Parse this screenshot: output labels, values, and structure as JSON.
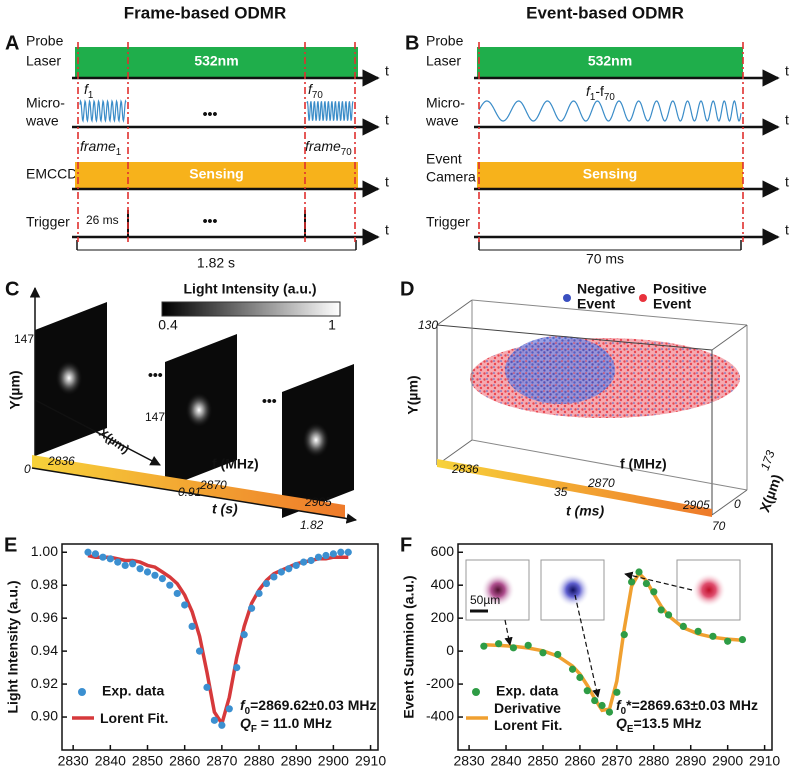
{
  "panel_a": {
    "letter": "A",
    "title": "Frame-based ODMR",
    "probe": [
      "Probe",
      "Laser"
    ],
    "micro": [
      "Micro-",
      "wave"
    ],
    "cam": [
      "EMCCD"
    ],
    "trig": [
      "Trigger"
    ],
    "laser": "532nm",
    "sensing": "Sensing",
    "axis": "t",
    "f_first": [
      "f",
      "1"
    ],
    "f_last": [
      "f",
      "70"
    ],
    "dots": "•••",
    "frame_first": [
      "frame",
      "1"
    ],
    "frame_last": [
      "frame",
      "70"
    ],
    "period": "26 ms",
    "total": "1.82 s"
  },
  "panel_b": {
    "letter": "B",
    "title": "Event-based ODMR",
    "probe": [
      "Probe",
      "Laser"
    ],
    "micro": [
      "Micro-",
      "wave"
    ],
    "cam": [
      "Event",
      "Camera"
    ],
    "trig": [
      "Trigger"
    ],
    "laser": "532nm",
    "sensing": "Sensing",
    "axis": "t",
    "f_range": [
      "f",
      "1",
      "-f",
      "70"
    ],
    "total": "70 ms"
  },
  "panel_c": {
    "letter": "C",
    "colorbar_title": "Light Intensity (a.u.)",
    "colorbar_min": 0.4,
    "colorbar_max": 1,
    "y_label": "Y(µm)",
    "y_max": 147,
    "x_label": "X(µm)",
    "x_max": 147,
    "dots": "•••",
    "origin": 0,
    "freqs": [
      2836,
      2870,
      2905
    ],
    "f_label": "f (MHz)",
    "times": [
      0.91,
      1.82
    ],
    "t_label": "t (s)"
  },
  "panel_d": {
    "letter": "D",
    "negative": [
      "Negative",
      "Event"
    ],
    "positive": [
      "Positive",
      "Event"
    ],
    "negative_color": "#3a4fc0",
    "positive_color": "#e8323c",
    "y_label": "Y(µm)",
    "y_max": 130,
    "origin": 0,
    "freqs": [
      2836,
      2870,
      2905
    ],
    "f_label": "f (MHz)",
    "t_mid": 35,
    "t_max": 70,
    "t_label": "t (ms)",
    "x_max": 173,
    "x_label": "X(µm)"
  },
  "panel_e": {
    "letter": "E",
    "type": "scatter",
    "ylabel": "Light Intensity (a.u.)",
    "x": [
      2834,
      2836,
      2838,
      2840,
      2842,
      2844,
      2846,
      2848,
      2850,
      2852,
      2854,
      2856,
      2858,
      2860,
      2862,
      2864,
      2866,
      2868,
      2870,
      2872,
      2874,
      2876,
      2878,
      2880,
      2882,
      2884,
      2886,
      2888,
      2890,
      2892,
      2894,
      2896,
      2898,
      2900,
      2902,
      2904
    ],
    "series": [
      {
        "name": "Exp. data",
        "color": "#3b8fd0",
        "values": [
          1.0,
          0.999,
          0.997,
          0.996,
          0.994,
          0.992,
          0.993,
          0.99,
          0.988,
          0.986,
          0.984,
          0.98,
          0.975,
          0.968,
          0.955,
          0.94,
          0.918,
          0.898,
          0.895,
          0.905,
          0.93,
          0.95,
          0.966,
          0.975,
          0.981,
          0.985,
          0.988,
          0.99,
          0.992,
          0.994,
          0.995,
          0.997,
          0.998,
          0.999,
          1.0,
          1.0
        ]
      },
      {
        "name": "Lorent Fit.",
        "color": "#d6393b",
        "values": [
          0.998,
          0.997,
          0.997,
          0.997,
          0.996,
          0.995,
          0.995,
          0.994,
          0.992,
          0.991,
          0.988,
          0.985,
          0.981,
          0.974,
          0.964,
          0.949,
          0.927,
          0.903,
          0.896,
          0.912,
          0.936,
          0.955,
          0.969,
          0.977,
          0.983,
          0.987,
          0.989,
          0.991,
          0.993,
          0.994,
          0.995,
          0.996,
          0.996,
          0.997,
          0.997,
          0.997
        ]
      }
    ],
    "xlim": [
      2827,
      2912
    ],
    "ylim": [
      0.88,
      1.005
    ],
    "xticks": [
      2830,
      2840,
      2850,
      2860,
      2870,
      2880,
      2890,
      2900,
      2910
    ],
    "yticks": [
      {
        "value": 0.9,
        "label": "0.90"
      },
      0.92,
      0.94,
      0.96,
      0.98,
      {
        "value": 1,
        "label": "1.00"
      }
    ],
    "annotations": [
      [
        "f",
        "0",
        "=2869.62±0.03 MHz"
      ],
      [
        "Q",
        "F",
        " = 11.0 MHz"
      ]
    ]
  },
  "panel_f": {
    "letter": "F",
    "type": "scatter",
    "ylabel": "Event Summion (a.u.)",
    "x": [
      2834,
      2838,
      2842,
      2846,
      2850,
      2854,
      2858,
      2860,
      2862,
      2864,
      2866,
      2868,
      2870,
      2872,
      2874,
      2876,
      2878,
      2880,
      2882,
      2884,
      2888,
      2892,
      2896,
      2900,
      2904
    ],
    "series": [
      {
        "name": "Exp. data",
        "color": "#2e9c45",
        "values": [
          30,
          45,
          20,
          35,
          -10,
          -20,
          -110,
          -160,
          -240,
          -300,
          -330,
          -370,
          -250,
          100,
          420,
          480,
          410,
          360,
          250,
          220,
          150,
          120,
          90,
          60,
          70
        ]
      },
      {
        "name": "Derivative Lorent Fit.",
        "color": "#f0a030",
        "values": [
          39,
          35,
          29,
          19,
          2,
          -30,
          -91,
          -139,
          -208,
          -288,
          -359,
          -352,
          -182,
          133,
          394,
          472,
          427,
          346,
          272,
          214,
          142,
          105,
          84,
          73,
          66
        ]
      }
    ],
    "xlim": [
      2827,
      2912
    ],
    "ylim": [
      -600,
      650
    ],
    "xticks": [
      2830,
      2840,
      2850,
      2860,
      2870,
      2880,
      2890,
      2900,
      2910
    ],
    "yticks": [
      -400,
      -200,
      0,
      200,
      400,
      600
    ],
    "annotations": [
      [
        "f",
        "0",
        "*=2869.63±0.03 MHz"
      ],
      [
        "Q",
        "E",
        "=13.5 MHz"
      ]
    ],
    "inset_scale": "50µm"
  }
}
